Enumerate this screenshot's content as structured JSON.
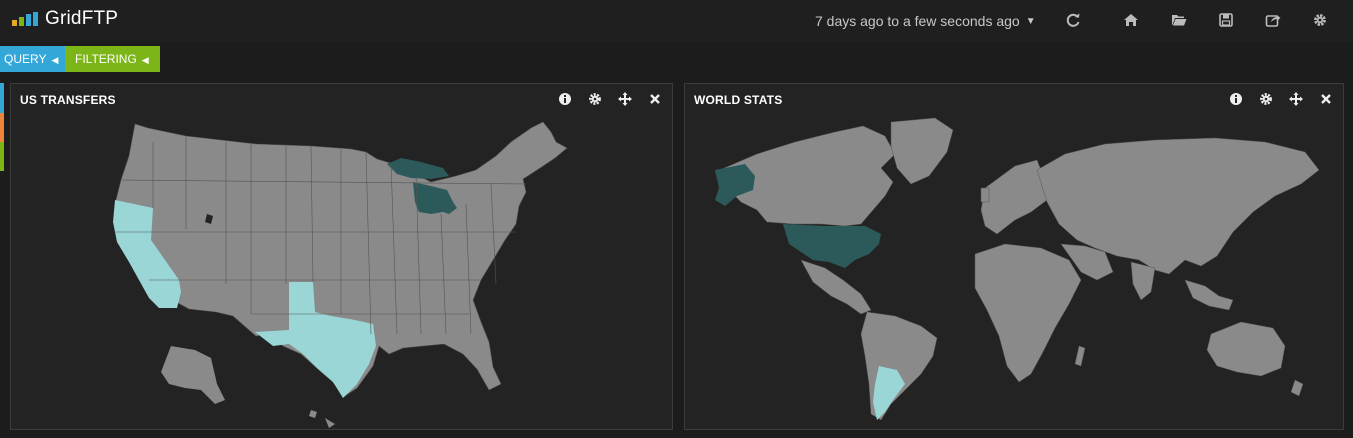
{
  "app": {
    "brand": "GridFTP",
    "time_range": "7 days ago to a few seconds ago"
  },
  "nav_icons": [
    "refresh-icon",
    "home-icon",
    "folder-open-icon",
    "save-icon",
    "share-icon",
    "gear-icon"
  ],
  "filters": {
    "query_label": "QUERY",
    "filtering_label": "FILTERING"
  },
  "panels": {
    "us": {
      "title": "US TRANSFERS",
      "highlighted": [
        {
          "region": "Michigan",
          "shade": "dark"
        },
        {
          "region": "California",
          "shade": "light"
        },
        {
          "region": "Texas",
          "shade": "light"
        }
      ]
    },
    "world": {
      "title": "WORLD STATS",
      "highlighted": [
        {
          "region": "United States",
          "shade": "dark"
        },
        {
          "region": "Argentina",
          "shade": "light"
        }
      ]
    }
  },
  "colors": {
    "background": "#1c1c1c",
    "panel": "#232323",
    "land": "#8a8a8a",
    "highlight_dark": "#2c5a5a",
    "highlight_light": "#9ad6d6",
    "query_pill": "#33a8d8",
    "filter_pill": "#7cb518",
    "strip_orange": "#ef843c"
  }
}
